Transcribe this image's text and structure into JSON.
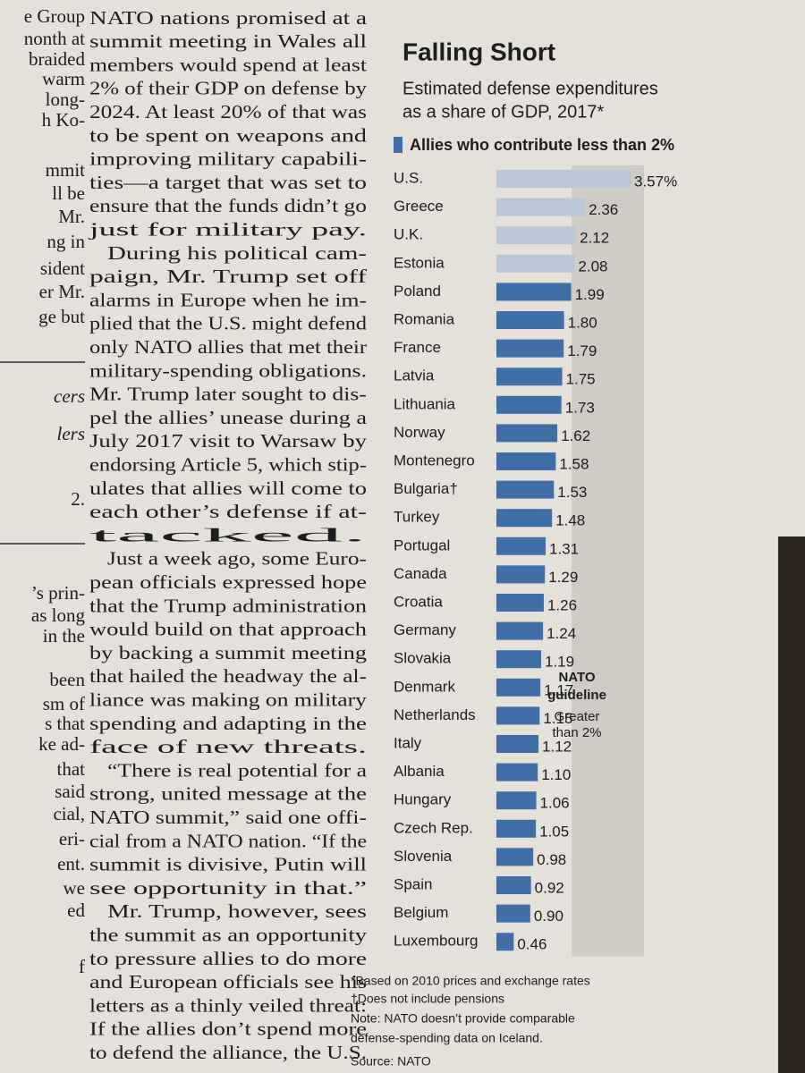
{
  "article": {
    "left_fragments": [
      "e Group",
      "nonth at",
      "braided",
      "warm",
      "long-",
      "h Ko-",
      "mmit",
      "ll be",
      "Mr.",
      "ng in",
      "sident",
      "er Mr.",
      "ge but",
      "cers",
      "lers",
      "2.",
      "’s prin-",
      "as long",
      "in the",
      "been",
      "sm of",
      "s that",
      "ke ad-",
      "that",
      "said",
      "cial,",
      "eri-",
      "ent.",
      "we",
      "ed",
      "f"
    ],
    "lines": [
      "NATO nations promised at a",
      "summit meeting in Wales all",
      "members would spend at least",
      "2% of their GDP on defense by",
      "2024. At least 20% of that was",
      "to be spent on weapons and",
      "improving military capabili-",
      "ties—a target that was set to",
      "ensure that the funds didn’t go",
      "just for military pay.",
      "During his political cam-",
      "paign, Mr. Trump set off",
      "alarms in Europe when he im-",
      "plied that the U.S. might defend",
      "only NATO allies that met their",
      "military-spending obligations.",
      "Mr. Trump later sought to dis-",
      "pel the allies’ unease during a",
      "July 2017 visit to Warsaw by",
      "endorsing Article 5, which stip-",
      "ulates that allies will come to",
      "each other’s defense if at-",
      "tacked.",
      "Just a week ago, some Euro-",
      "pean officials expressed hope",
      "that the Trump administration",
      "would build on that approach",
      "by backing a summit meeting",
      "that hailed the headway the al-",
      "liance was making on military",
      "spending and adapting in the",
      "face of new threats.",
      "“There is real potential for a",
      "strong, united message at the",
      "NATO summit,” said one offi-",
      "cial from a NATO nation. “If the",
      "summit is divisive, Putin will",
      "see opportunity in that.”",
      "Mr. Trump, however, sees",
      "the summit as an opportunity",
      "to pressure allies to do more",
      "and European officials see his",
      "letters as a thinly veiled threat:",
      "If the allies don’t spend more",
      "to defend the alliance, the U.S."
    ]
  },
  "chart_data": {
    "type": "hbar",
    "title": "Falling Short",
    "subtitle": [
      "Estimated defense expenditures",
      "as a share of GDP, 2017*"
    ],
    "legend": "Allies who contribute less than 2%",
    "categories": [
      "U.S.",
      "Greece",
      "U.K.",
      "Estonia",
      "Poland",
      "Romania",
      "France",
      "Latvia",
      "Lithuania",
      "Norway",
      "Montenegro",
      "Bulgaria†",
      "Turkey",
      "Portugal",
      "Canada",
      "Croatia",
      "Germany",
      "Slovakia",
      "Denmark",
      "Netherlands",
      "Italy",
      "Albania",
      "Hungary",
      "Czech Rep.",
      "Slovenia",
      "Spain",
      "Belgium",
      "Luxembourg"
    ],
    "values": [
      3.57,
      2.36,
      2.12,
      2.08,
      1.99,
      1.8,
      1.79,
      1.75,
      1.73,
      1.62,
      1.58,
      1.53,
      1.48,
      1.31,
      1.29,
      1.26,
      1.24,
      1.19,
      1.17,
      1.15,
      1.12,
      1.1,
      1.06,
      1.05,
      0.98,
      0.92,
      0.9,
      0.46
    ],
    "value_labels": [
      "3.57%",
      "2.36",
      "2.12",
      "2.08",
      "1.99",
      "1.80",
      "1.79",
      "1.75",
      "1.73",
      "1.62",
      "1.58",
      "1.53",
      "1.48",
      "1.31",
      "1.29",
      "1.26",
      "1.24",
      "1.19",
      "1.17",
      "1.15",
      "1.12",
      "1.10",
      "1.06",
      "1.05",
      "0.98",
      "0.92",
      "0.90",
      "0.46"
    ],
    "colors": [
      "#b9c6d6",
      "#b9c6d6",
      "#b9c6d6",
      "#b9c6d6",
      "#3f6fa6",
      "#3f6fa6",
      "#3f6fa6",
      "#3f6fa6",
      "#3f6fa6",
      "#3f6fa6",
      "#3f6fa6",
      "#3f6fa6",
      "#3f6fa6",
      "#3f6fa6",
      "#3f6fa6",
      "#3f6fa6",
      "#3f6fa6",
      "#3f6fa6",
      "#3f6fa6",
      "#3f6fa6",
      "#3f6fa6",
      "#3f6fa6",
      "#3f6fa6",
      "#3f6fa6",
      "#3f6fa6",
      "#3f6fa6",
      "#3f6fa6",
      "#3f6fa6"
    ],
    "legend_color": "#3f6fa6",
    "annotation": [
      "NATO",
      "guideline",
      "Greater",
      "than 2%"
    ],
    "footnotes": [
      "*Based on 2010 prices and exchange rates",
      "†Does not include pensions",
      "Note: NATO doesn’t provide comparable",
      "defense-spending data on Iceland.",
      "Source: NATO"
    ]
  }
}
